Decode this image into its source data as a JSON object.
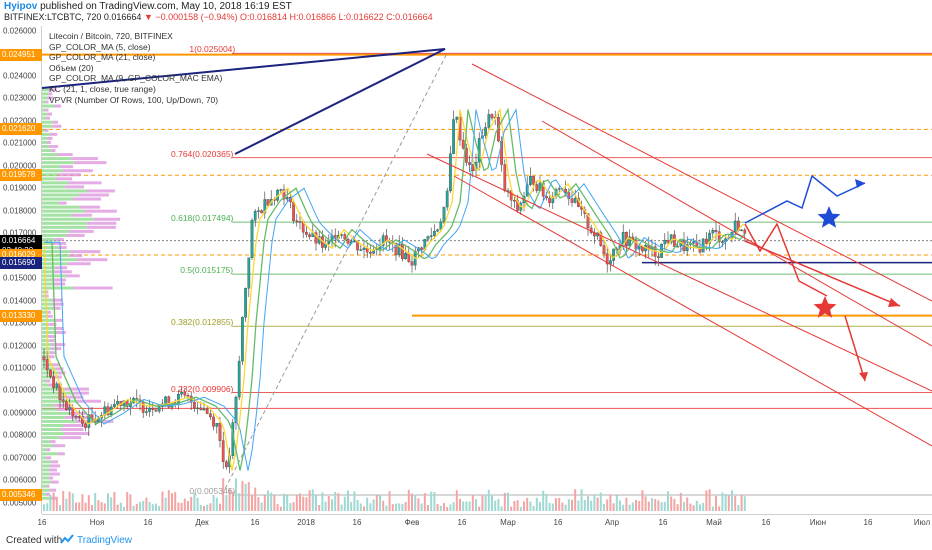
{
  "header": {
    "author": "Hyipov",
    "published": "published on TradingView.com, May 10, 2018 16:19 EST",
    "symbol_line_prefix": "BITFINEX:LTCBTC, 720",
    "open_value": "0.016664",
    "change": "−0.000158 (−0.94%)",
    "ohlc": "O:0.016814 H:0.016866 L:0.016622 C:0.016664"
  },
  "indicators": [
    "Litecoin / Bitcoin, 720, BITFINEX",
    "GP_COLOR_MA (5, close)",
    "GP_COLOR_MA (21, close)",
    "Объем (20)",
    "GP_COLOR_MA (9, GP_COLOR_MAC EMA)",
    "KC (21, 1, close, true range)",
    "VPVR (Number Of Rows, 100, Up/Down, 70)"
  ],
  "price_scale": {
    "ticks": [
      "0.026000",
      "0.025000",
      "0.024000",
      "0.023000",
      "0.022000",
      "0.021000",
      "0.020000",
      "0.019000",
      "0.018000",
      "0.017000",
      "0.016000",
      "0.015000",
      "0.014000",
      "0.013000",
      "0.012000",
      "0.011000",
      "0.010000",
      "0.009000",
      "0.008000",
      "0.007000",
      "0.006000",
      "0.005000"
    ],
    "labels": [
      {
        "text": "0.024951",
        "color": "#ff9800",
        "value": 0.024951
      },
      {
        "text": "0.021620",
        "color": "#ff9800",
        "value": 0.02162
      },
      {
        "text": "0.019578",
        "color": "#ff9800",
        "value": 0.019578
      },
      {
        "text": "0.016664",
        "color": "#000000",
        "value": 0.016664
      },
      {
        "text": "02:40:30",
        "color": "#000000",
        "value": 0.0162
      },
      {
        "text": "0.016029",
        "color": "#ff9800",
        "value": 0.016029
      },
      {
        "text": "0.015690",
        "color": "#1a237e",
        "value": 0.01569
      },
      {
        "text": "0.013330",
        "color": "#ff9800",
        "value": 0.01333
      },
      {
        "text": "0.005346",
        "color": "#ff9800",
        "value": 0.005346
      }
    ]
  },
  "time_scale": [
    "16",
    "Ноя",
    "16",
    "Дек",
    "16",
    "2018",
    "16",
    "Фев",
    "16",
    "Мар",
    "16",
    "Апр",
    "16",
    "Май",
    "16",
    "Июн",
    "16",
    "Июл"
  ],
  "fib_levels": [
    {
      "label": "1(0.025004)",
      "value": 0.025004,
      "color": "#e53935"
    },
    {
      "label": "0.764(0.020365)",
      "value": 0.020365,
      "color": "#e53935"
    },
    {
      "label": "0.618(0.017494)",
      "value": 0.017494,
      "color": "#4caf50"
    },
    {
      "label": "0.5(0.015175)",
      "value": 0.015175,
      "color": "#4caf50"
    },
    {
      "label": "0.382(0.012855)",
      "value": 0.012855,
      "color": "#9e9d24"
    },
    {
      "label": "0.232(0.009906)",
      "value": 0.009906,
      "color": "#e53935"
    },
    {
      "label": "0(0.005346)",
      "value": 0.005346,
      "color": "#9e9e9e"
    }
  ],
  "colors": {
    "bull": "#26a69a",
    "bear": "#ef5350",
    "fib_red": "#e53935",
    "forecast_blue": "#1e4bd8",
    "forecast_red": "#e53935",
    "level_orange": "#ff9800",
    "trend_navy": "#1a237e"
  },
  "footer": {
    "created": "Created with",
    "brand": "TradingView"
  }
}
